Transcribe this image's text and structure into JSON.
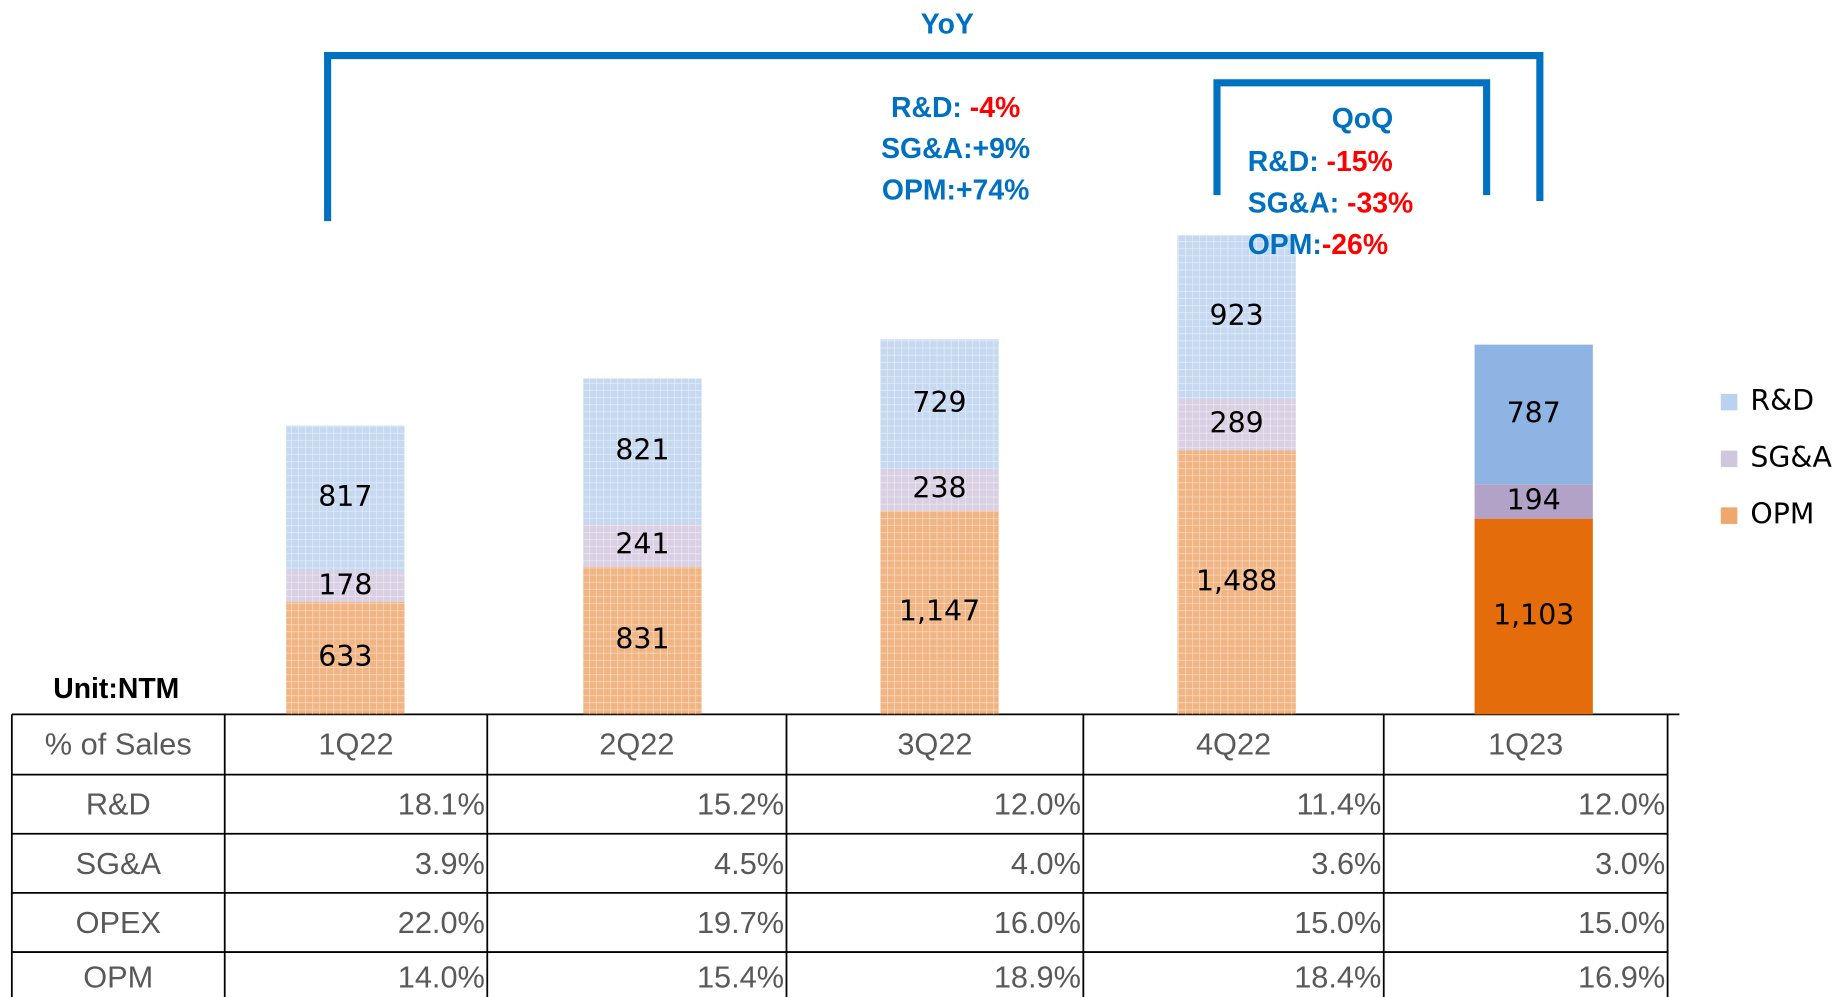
{
  "chart_data": {
    "type": "bar",
    "stacked": true,
    "categories": [
      "1Q22",
      "2Q22",
      "3Q22",
      "4Q22",
      "1Q23"
    ],
    "series": [
      {
        "name": "OPM",
        "color": "#e46c0a",
        "values": [
          633,
          831,
          1147,
          1488,
          1103
        ],
        "value_labels": [
          "633",
          "831",
          "1,147",
          "1,488",
          "1,103"
        ]
      },
      {
        "name": "SG&A",
        "color": "#b3a2c7",
        "values": [
          178,
          241,
          238,
          289,
          194
        ]
      },
      {
        "name": "R&D",
        "color": "#8eb4e3",
        "values": [
          817,
          821,
          729,
          923,
          787
        ]
      }
    ],
    "highlight": "1Q23",
    "legend": "right"
  },
  "annotations": {
    "yoy": {
      "title": "YoY",
      "lines": [
        {
          "label": "R&D: ",
          "change": "-4%"
        },
        {
          "label": "SG&A:",
          "change": "+9%"
        },
        {
          "label": "OPM:",
          "change": "+74%"
        }
      ]
    },
    "qoq": {
      "title": "QoQ",
      "lines": [
        {
          "label": "R&D: ",
          "change": "-15%"
        },
        {
          "label": "SG&A: ",
          "change": "-33%"
        },
        {
          "label": "OPM:",
          "change": "-26%"
        }
      ]
    }
  },
  "table": {
    "unit": "Unit:NTM",
    "corner": "% of Sales",
    "rows": [
      [
        "R&D",
        "18.1%",
        "15.2%",
        "12.0%",
        "11.4%",
        "12.0%"
      ],
      [
        "SG&A",
        "3.9%",
        "4.5%",
        "4.0%",
        "3.6%",
        "3.0%"
      ],
      [
        "OPEX",
        "22.0%",
        "19.7%",
        "16.0%",
        "15.0%",
        "15.0%"
      ],
      [
        "OPM",
        "14.0%",
        "15.4%",
        "18.9%",
        "18.4%",
        "16.9%"
      ]
    ]
  }
}
